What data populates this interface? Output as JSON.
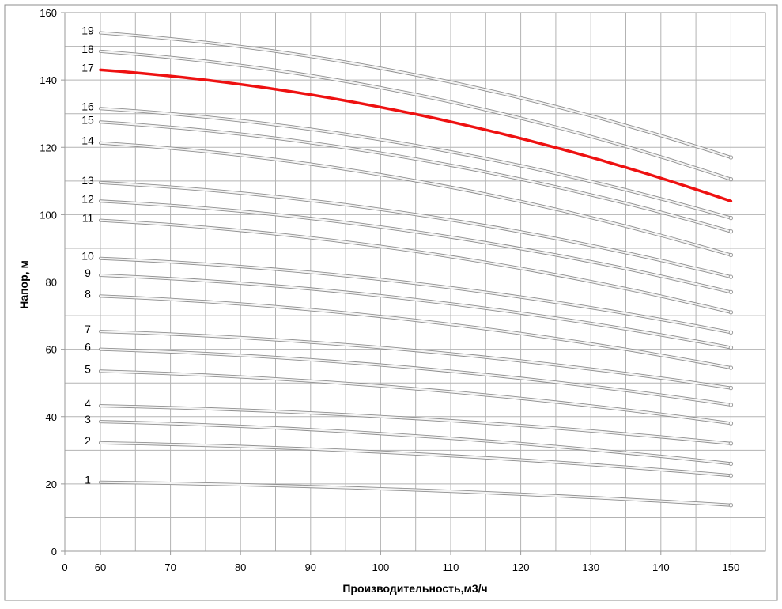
{
  "chart_data": {
    "type": "line",
    "title": "",
    "xlabel": "Производительность,м3/ч",
    "ylabel": "Напор, м",
    "xlim": [
      0,
      150
    ],
    "ylim": [
      0,
      160
    ],
    "x_ticks": [
      "0",
      "60",
      "70",
      "80",
      "90",
      "100",
      "110",
      "120",
      "130",
      "140",
      "150"
    ],
    "y_ticks": [
      "0",
      "20",
      "40",
      "60",
      "80",
      "100",
      "120",
      "140",
      "160"
    ],
    "grid": true,
    "x_grid": [
      0,
      10,
      20,
      30,
      40,
      50,
      60,
      70,
      80,
      90,
      100,
      110,
      120,
      130,
      140,
      150,
      160,
      170,
      180,
      190,
      200
    ],
    "y_grid_step": 10,
    "colors": {
      "curve": "#c8c8c8",
      "highlight": "#ee1111",
      "grid": "#b3b3b3",
      "axis": "#9a9a9a"
    },
    "x": [
      60,
      150
    ],
    "series": [
      {
        "name": "1",
        "values": [
          20.5,
          13.7
        ]
      },
      {
        "name": "2",
        "values": [
          32.2,
          22.5
        ]
      },
      {
        "name": "3",
        "values": [
          38.5,
          26.0
        ]
      },
      {
        "name": "4",
        "values": [
          43.2,
          32.0
        ]
      },
      {
        "name": "5",
        "values": [
          53.5,
          38.0
        ]
      },
      {
        "name": "6",
        "values": [
          60.0,
          43.5
        ]
      },
      {
        "name": "7",
        "values": [
          65.3,
          48.5
        ]
      },
      {
        "name": "8",
        "values": [
          75.8,
          54.5
        ]
      },
      {
        "name": "9",
        "values": [
          82.0,
          60.5
        ]
      },
      {
        "name": "10",
        "values": [
          87.0,
          65.0
        ]
      },
      {
        "name": "11",
        "values": [
          98.3,
          71.0
        ]
      },
      {
        "name": "12",
        "values": [
          104.0,
          77.0
        ]
      },
      {
        "name": "13",
        "values": [
          109.5,
          81.5
        ]
      },
      {
        "name": "14",
        "values": [
          121.3,
          88.0
        ]
      },
      {
        "name": "15",
        "values": [
          127.5,
          95.0
        ]
      },
      {
        "name": "16",
        "values": [
          131.5,
          99.0
        ]
      },
      {
        "name": "17",
        "values": [
          143.0,
          104.0
        ],
        "highlight": true
      },
      {
        "name": "18",
        "values": [
          148.5,
          110.5
        ]
      },
      {
        "name": "19",
        "values": [
          154.0,
          117.0
        ]
      }
    ]
  }
}
